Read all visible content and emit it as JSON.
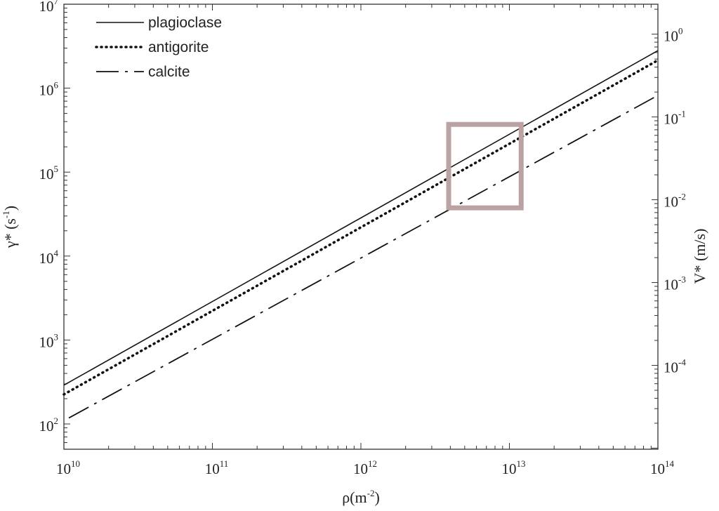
{
  "chart_data": {
    "type": "line",
    "x_scale": "log",
    "y_scale": "log",
    "y2_scale": "log",
    "xlim": [
      10000000000.0,
      100000000000000.0
    ],
    "ylim": [
      50,
      10000000.0
    ],
    "y2lim": [
      9.7e-06,
      2.3
    ],
    "x_ticks": [
      {
        "base": "10",
        "exp": "10"
      },
      {
        "base": "10",
        "exp": "11"
      },
      {
        "base": "10",
        "exp": "12"
      },
      {
        "base": "10",
        "exp": "13"
      },
      {
        "base": "10",
        "exp": "14"
      }
    ],
    "y_ticks": [
      {
        "base": "10",
        "exp": "2"
      },
      {
        "base": "10",
        "exp": "3"
      },
      {
        "base": "10",
        "exp": "4"
      },
      {
        "base": "10",
        "exp": "5"
      },
      {
        "base": "10",
        "exp": "6"
      },
      {
        "base": "10",
        "exp": "7"
      }
    ],
    "y2_ticks": [
      {
        "base": "10",
        "exp": "-4"
      },
      {
        "base": "10",
        "exp": "-3"
      },
      {
        "base": "10",
        "exp": "-2"
      },
      {
        "base": "10",
        "exp": "-1"
      },
      {
        "base": "10",
        "exp": "0"
      }
    ],
    "xlabel": {
      "main": "ρ(m",
      "sup": "-2",
      "end": ")"
    },
    "ylabel": {
      "main": "γ* (s",
      "sup": "-1",
      "end": ")"
    },
    "y2label": "V* (m/s)",
    "series": [
      {
        "name": "plagioclase",
        "style": "solid",
        "x": [
          10000000000.0,
          100000000000000.0
        ],
        "y": [
          290,
          2800000
        ]
      },
      {
        "name": "antigorite",
        "style": "dotted",
        "x": [
          10000000000.0,
          100000000000000.0
        ],
        "y": [
          225,
          2150000
        ]
      },
      {
        "name": "calcite",
        "style": "dashdot",
        "x": [
          10800000000.0,
          100000000000000.0
        ],
        "y": [
          118,
          820000
        ]
      }
    ],
    "legend_position": "top-left",
    "highlight_box": {
      "x": [
        3900000000000.0,
        12000000000000.0
      ],
      "y": [
        37500,
        370000
      ],
      "color": "#bca3a3"
    },
    "grid": false
  }
}
